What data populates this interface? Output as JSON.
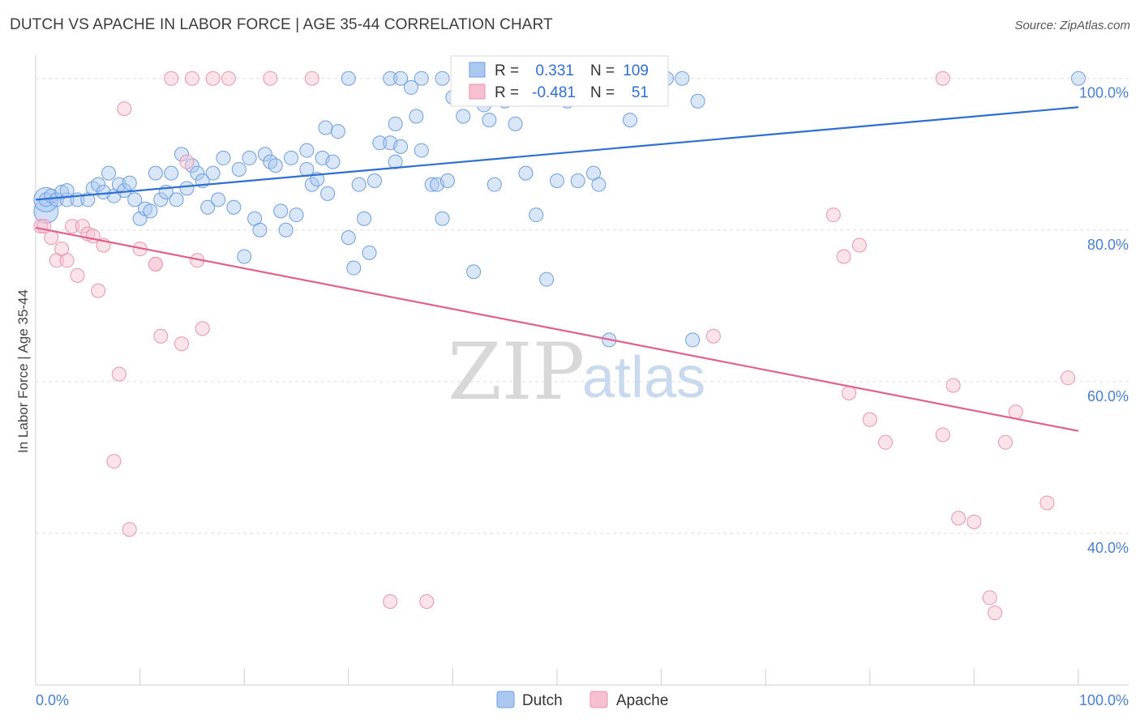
{
  "header": {
    "title": "DUTCH VS APACHE IN LABOR FORCE | AGE 35-44 CORRELATION CHART",
    "source": "Source: ZipAtlas.com"
  },
  "legend": {
    "rows": [
      {
        "r_label": "R =",
        "r_value": "0.331",
        "n_label": "N =",
        "n_value": "109"
      },
      {
        "r_label": "R =",
        "r_value": "-0.481",
        "n_label": "N =",
        "n_value": "51"
      }
    ],
    "bottom": [
      "Dutch",
      "Apache"
    ]
  },
  "watermark": {
    "zip": "ZIP",
    "atlas": "atlas"
  },
  "colors": {
    "dutch_fill": "#aac8f0",
    "dutch_stroke": "#6d9fe0",
    "dutch_line": "#2f6fd0",
    "apache_fill": "#f6c0d0",
    "apache_stroke": "#eb94b0",
    "apache_line": "#e0608e",
    "tick_text": "#4a7fd0",
    "grid": "#dddddd"
  },
  "chart_data": {
    "type": "scatter",
    "title": "DUTCH VS APACHE IN LABOR FORCE | AGE 35-44 CORRELATION CHART",
    "xlabel": "",
    "ylabel": "In Labor Force | Age 35-44",
    "xlim": [
      0,
      100
    ],
    "ylim": [
      20,
      102
    ],
    "x_tick_labels": [
      "0.0%",
      "100.0%"
    ],
    "y_ticks": [
      40,
      60,
      80,
      100
    ],
    "y_tick_labels": [
      "40.0%",
      "60.0%",
      "80.0%",
      "100.0%"
    ],
    "grid": true,
    "legend_position": "top-center",
    "series": [
      {
        "name": "Dutch",
        "r": 0.331,
        "n": 109,
        "trend": {
          "x": [
            0,
            100
          ],
          "y": [
            84.0,
            96.2
          ]
        },
        "points": [
          [
            1,
            84
          ],
          [
            1.5,
            84.5
          ],
          [
            2,
            84
          ],
          [
            2.5,
            85
          ],
          [
            3,
            84
          ],
          [
            4,
            84
          ],
          [
            5,
            84
          ],
          [
            5.5,
            85.5
          ],
          [
            6,
            86
          ],
          [
            7,
            87.5
          ],
          [
            7.5,
            84.5
          ],
          [
            8,
            86
          ],
          [
            8.5,
            85.2
          ],
          [
            9,
            86.2
          ],
          [
            9.5,
            84
          ],
          [
            10,
            81.5
          ],
          [
            10.5,
            82.8
          ],
          [
            11,
            82.5
          ],
          [
            11.5,
            87.5
          ],
          [
            12,
            84
          ],
          [
            12.5,
            85
          ],
          [
            13,
            87.5
          ],
          [
            13.5,
            84
          ],
          [
            14,
            90
          ],
          [
            14.5,
            85.5
          ],
          [
            15,
            88.5
          ],
          [
            15.5,
            87.5
          ],
          [
            16,
            86.5
          ],
          [
            16.5,
            83
          ],
          [
            17,
            87.5
          ],
          [
            17.5,
            84
          ],
          [
            18,
            89.5
          ],
          [
            19,
            83
          ],
          [
            19.5,
            88
          ],
          [
            20,
            76.5
          ],
          [
            20.5,
            89.5
          ],
          [
            21,
            81.5
          ],
          [
            21.5,
            80
          ],
          [
            22,
            90
          ],
          [
            22.5,
            89
          ],
          [
            23,
            88.5
          ],
          [
            23.5,
            82.5
          ],
          [
            24,
            80
          ],
          [
            24.5,
            89.5
          ],
          [
            25,
            82
          ],
          [
            26,
            88
          ],
          [
            26,
            90.5
          ],
          [
            26.5,
            86
          ],
          [
            27,
            86.7
          ],
          [
            27.5,
            89.5
          ],
          [
            27.8,
            93.5
          ],
          [
            28,
            84.8
          ],
          [
            28.5,
            89
          ],
          [
            29,
            93
          ],
          [
            30,
            79
          ],
          [
            30.5,
            75
          ],
          [
            31,
            86
          ],
          [
            31.5,
            81.5
          ],
          [
            32,
            77
          ],
          [
            32.5,
            86.5
          ],
          [
            33,
            91.5
          ],
          [
            34,
            91.5
          ],
          [
            34.5,
            94
          ],
          [
            34.5,
            89
          ],
          [
            35,
            91
          ],
          [
            36,
            98.8
          ],
          [
            36.5,
            95
          ],
          [
            37,
            90.5
          ],
          [
            38,
            86
          ],
          [
            38.5,
            86
          ],
          [
            39,
            81.5
          ],
          [
            39.5,
            86.5
          ],
          [
            40,
            97.5
          ],
          [
            41,
            95
          ],
          [
            42,
            74.5
          ],
          [
            43,
            96.5
          ],
          [
            43.5,
            94.5
          ],
          [
            44,
            86
          ],
          [
            45,
            97
          ],
          [
            45.5,
            99.5
          ],
          [
            46,
            94
          ],
          [
            47,
            87.5
          ],
          [
            48,
            82
          ],
          [
            49,
            73.5
          ],
          [
            50,
            86.5
          ],
          [
            51,
            97
          ],
          [
            52,
            86.5
          ],
          [
            53,
            99.5
          ],
          [
            53.5,
            87.5
          ],
          [
            54,
            86
          ],
          [
            55,
            65.5
          ],
          [
            57,
            94.5
          ],
          [
            58,
            99.5
          ],
          [
            60,
            100
          ],
          [
            63,
            65.5
          ],
          [
            63.5,
            97
          ],
          [
            100,
            100
          ],
          [
            30,
            100
          ],
          [
            34,
            100
          ],
          [
            35,
            100
          ],
          [
            37,
            100
          ],
          [
            39,
            100
          ],
          [
            55,
            100
          ],
          [
            43,
            100
          ],
          [
            62,
            100
          ],
          [
            60.5,
            100
          ],
          [
            58.5,
            100
          ],
          [
            3,
            85.2
          ],
          [
            6.5,
            85
          ]
        ],
        "large_points": [
          [
            1,
            82.5
          ],
          [
            1,
            84
          ]
        ]
      },
      {
        "name": "Apache",
        "r": -0.481,
        "n": 51,
        "trend": {
          "x": [
            0,
            100
          ],
          "y": [
            80.3,
            53.5
          ]
        },
        "points": [
          [
            0.5,
            80.5
          ],
          [
            1.5,
            79
          ],
          [
            2,
            76
          ],
          [
            2.5,
            77.5
          ],
          [
            3,
            76
          ],
          [
            3.5,
            80.5
          ],
          [
            4,
            74
          ],
          [
            4.5,
            80.5
          ],
          [
            5,
            79.5
          ],
          [
            5.5,
            79.2
          ],
          [
            6,
            72
          ],
          [
            6.5,
            78
          ],
          [
            8,
            61
          ],
          [
            7.5,
            49.5
          ],
          [
            8.5,
            96
          ],
          [
            9,
            40.5
          ],
          [
            10,
            77.5
          ],
          [
            11.5,
            75.5
          ],
          [
            12,
            66
          ],
          [
            14,
            65
          ],
          [
            14.5,
            89
          ],
          [
            15.5,
            76
          ],
          [
            16,
            67
          ],
          [
            13,
            100
          ],
          [
            15,
            100
          ],
          [
            17,
            100
          ],
          [
            18.5,
            100
          ],
          [
            22.5,
            100
          ],
          [
            26.5,
            100
          ],
          [
            34,
            31
          ],
          [
            37.5,
            31
          ],
          [
            65,
            66
          ],
          [
            76.5,
            82
          ],
          [
            77.5,
            76.5
          ],
          [
            79,
            78
          ],
          [
            78,
            58.5
          ],
          [
            80,
            55
          ],
          [
            81.5,
            52
          ],
          [
            87,
            53
          ],
          [
            88,
            59.5
          ],
          [
            88.5,
            42
          ],
          [
            90,
            41.5
          ],
          [
            91.5,
            31.5
          ],
          [
            92,
            29.5
          ],
          [
            93,
            52
          ],
          [
            94,
            56
          ],
          [
            97,
            44
          ],
          [
            99,
            60.5
          ],
          [
            87,
            100
          ],
          [
            0.8,
            80.5
          ],
          [
            11.5,
            75.5
          ]
        ]
      }
    ]
  }
}
